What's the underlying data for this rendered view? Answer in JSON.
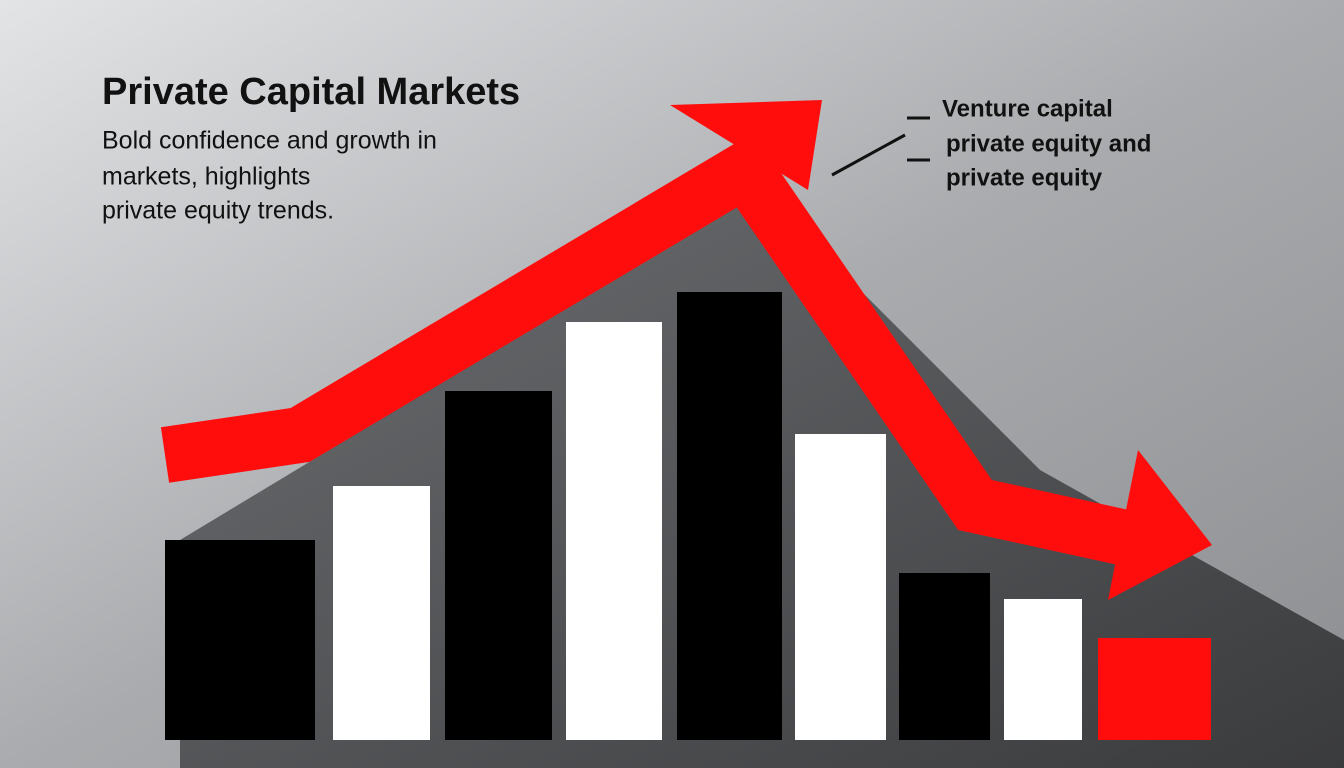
{
  "chart_data": {
    "type": "bar",
    "title": "Private Capital Markets",
    "subtitle": [
      "Bold confidence and growth in",
      "markets, highlights",
      "private equity trends."
    ],
    "annotations": [
      "Venture capital",
      "private equity and",
      "private equity"
    ],
    "values": [
      200,
      254,
      349,
      418,
      448,
      306,
      167,
      141,
      102
    ],
    "colors": [
      "#000000",
      "#ffffff",
      "#000000",
      "#ffffff",
      "#000000",
      "#ffffff",
      "#000000",
      "#ffffff",
      "#ff0d0d"
    ]
  }
}
